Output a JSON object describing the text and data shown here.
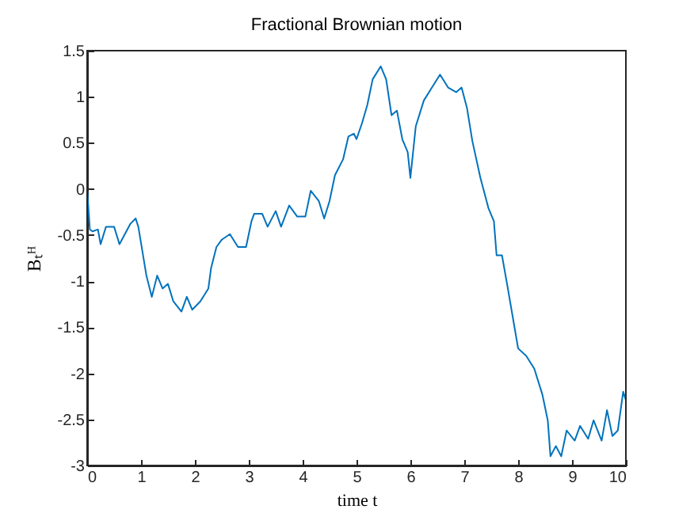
{
  "chart_data": {
    "type": "line",
    "title": "Fractional Brownian motion",
    "xlabel": "time t",
    "ylabel": "Bₜᴴ",
    "xlim": [
      0,
      10
    ],
    "ylim": [
      -3,
      1.5
    ],
    "xticks": [
      0,
      1,
      2,
      3,
      4,
      5,
      6,
      7,
      8,
      9,
      10
    ],
    "yticks": [
      -3,
      -2.5,
      -2,
      -1.5,
      -1,
      -0.5,
      0,
      0.5,
      1,
      1.5
    ],
    "grid": false,
    "marker": "none",
    "line_style": "solid",
    "series": [
      {
        "color": "#0072bd",
        "x": [
          0,
          0.05,
          0.1,
          0.2,
          0.25,
          0.35,
          0.5,
          0.6,
          0.8,
          0.9,
          0.95,
          1.1,
          1.2,
          1.3,
          1.4,
          1.5,
          1.6,
          1.75,
          1.85,
          1.95,
          2.1,
          2.25,
          2.3,
          2.4,
          2.5,
          2.65,
          2.8,
          2.95,
          3.05,
          3.1,
          3.25,
          3.35,
          3.5,
          3.6,
          3.75,
          3.9,
          4.05,
          4.15,
          4.3,
          4.4,
          4.5,
          4.6,
          4.75,
          4.85,
          4.95,
          5.0,
          5.1,
          5.2,
          5.3,
          5.45,
          5.55,
          5.65,
          5.75,
          5.85,
          5.95,
          6.0,
          6.1,
          6.25,
          6.4,
          6.55,
          6.7,
          6.85,
          6.95,
          7.05,
          7.15,
          7.3,
          7.45,
          7.55,
          7.6,
          7.7,
          7.8,
          7.9,
          8.0,
          8.15,
          8.3,
          8.45,
          8.55,
          8.6,
          8.7,
          8.8,
          8.9,
          9.05,
          9.15,
          9.3,
          9.4,
          9.55,
          9.65,
          9.75,
          9.85,
          9.95,
          10.0
        ],
        "values": [
          0,
          -0.44,
          -0.46,
          -0.44,
          -0.6,
          -0.41,
          -0.41,
          -0.6,
          -0.38,
          -0.32,
          -0.41,
          -0.94,
          -1.17,
          -0.94,
          -1.08,
          -1.03,
          -1.22,
          -1.33,
          -1.17,
          -1.31,
          -1.22,
          -1.08,
          -0.86,
          -0.63,
          -0.55,
          -0.49,
          -0.63,
          -0.63,
          -0.35,
          -0.27,
          -0.27,
          -0.41,
          -0.24,
          -0.41,
          -0.18,
          -0.3,
          -0.3,
          -0.02,
          -0.13,
          -0.32,
          -0.13,
          0.15,
          0.32,
          0.57,
          0.6,
          0.54,
          0.71,
          0.91,
          1.19,
          1.33,
          1.19,
          0.8,
          0.85,
          0.54,
          0.4,
          0.12,
          0.68,
          0.96,
          1.1,
          1.24,
          1.1,
          1.05,
          1.1,
          0.88,
          0.52,
          0.12,
          -0.21,
          -0.35,
          -0.72,
          -0.72,
          -1.05,
          -1.39,
          -1.73,
          -1.81,
          -1.95,
          -2.23,
          -2.51,
          -2.9,
          -2.79,
          -2.9,
          -2.62,
          -2.73,
          -2.57,
          -2.71,
          -2.51,
          -2.73,
          -2.4,
          -2.68,
          -2.62,
          -2.2,
          -2.29
        ]
      }
    ]
  }
}
